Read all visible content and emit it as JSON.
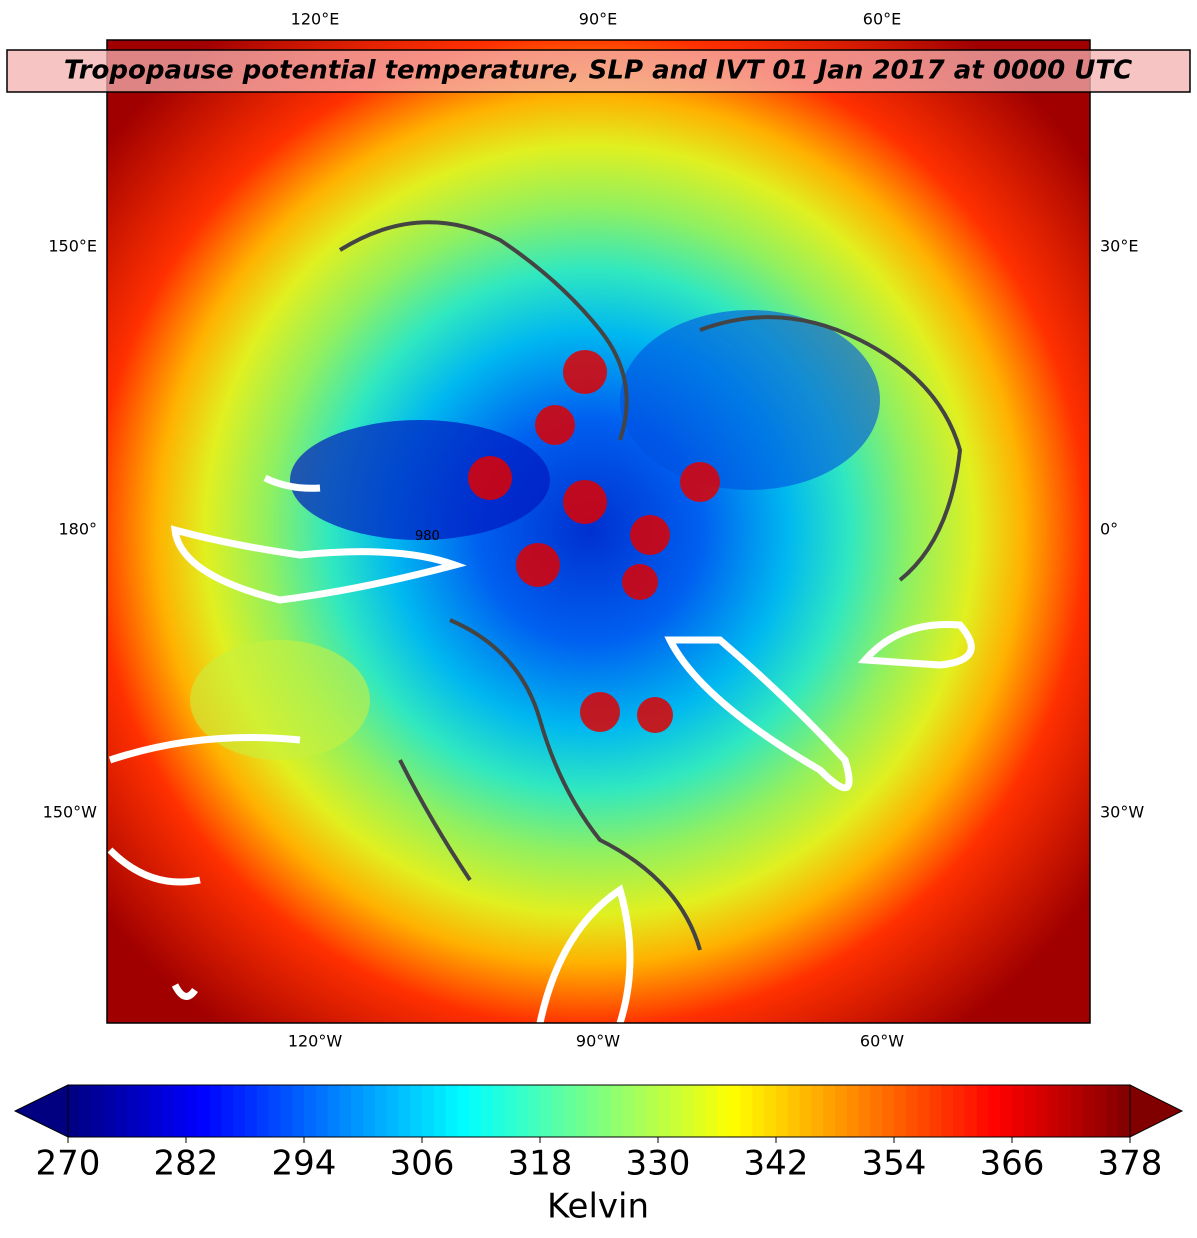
{
  "title": "Tropopause potential temperature, SLP and IVT 01 Jan 2017 at 0000 UTC",
  "map_labels": {
    "top": [
      "120°E",
      "90°E",
      "60°E"
    ],
    "bottom": [
      "120°W",
      "90°W",
      "60°W"
    ],
    "left": [
      "150°E",
      "180°",
      "150°W"
    ],
    "right": [
      "30°E",
      "0°",
      "30°W"
    ],
    "contour_label": "980"
  },
  "colorbar": {
    "label": "Kelvin",
    "range": [
      270,
      378
    ],
    "ticks": [
      270,
      282,
      294,
      306,
      318,
      330,
      342,
      354,
      366,
      378
    ],
    "colormap": "jet",
    "extend": "both"
  }
}
